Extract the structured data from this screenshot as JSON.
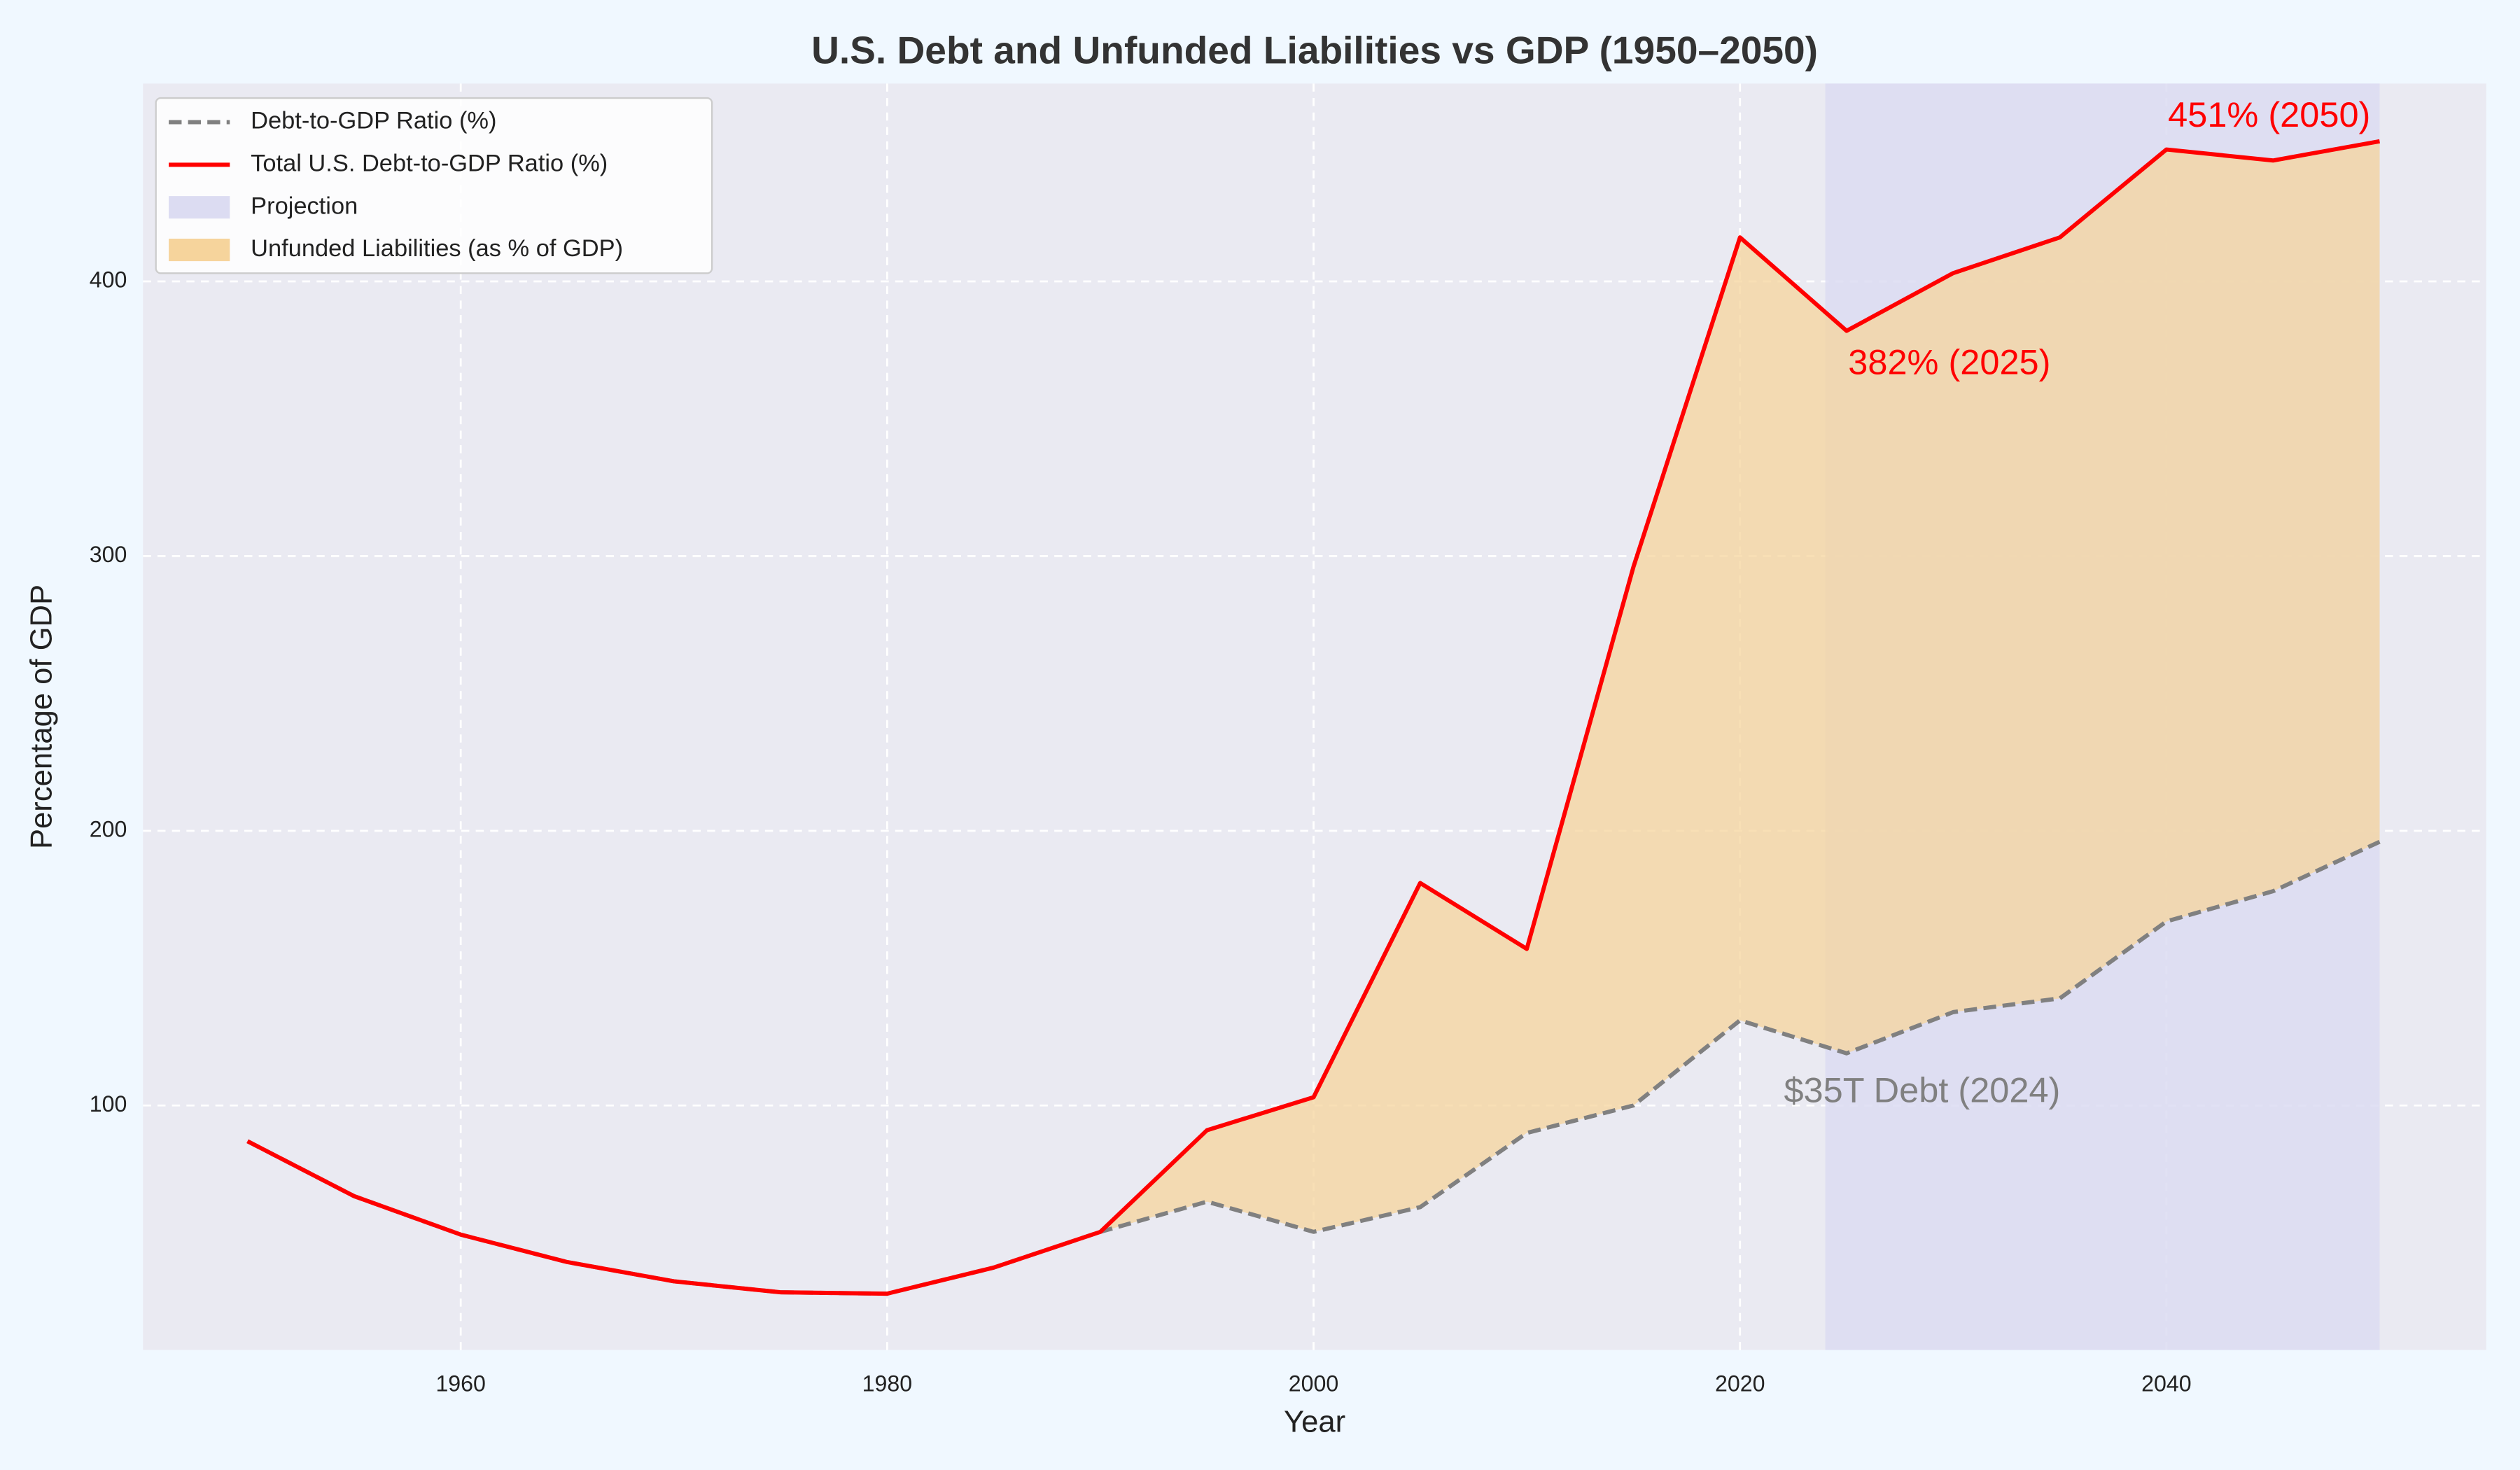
{
  "chart_data": {
    "type": "line",
    "title": "U.S. Debt and Unfunded Liabilities vs GDP (1950–2050)",
    "x_label": "Year",
    "y_label": "Percentage of GDP",
    "x": [
      1950,
      1955,
      1960,
      1965,
      1970,
      1975,
      1980,
      1985,
      1990,
      1995,
      2000,
      2005,
      2010,
      2015,
      2020,
      2025,
      2030,
      2035,
      2040,
      2045,
      2050
    ],
    "series": [
      {
        "name": "Debt-to-GDP Ratio (%)",
        "color": "#808080",
        "style": "dashed",
        "values": [
          87,
          67,
          53,
          43,
          36,
          32,
          31.5,
          41,
          54,
          65,
          54,
          63,
          90,
          100,
          131,
          119,
          134,
          139,
          167,
          178,
          196
        ]
      },
      {
        "name": "Total U.S. Debt-to-GDP Ratio (%)",
        "color": "#ff0000",
        "style": "solid",
        "values": [
          87,
          67,
          53,
          43,
          36,
          32,
          31.5,
          41,
          54,
          91,
          103,
          181,
          157,
          296,
          416,
          382,
          403,
          416,
          448,
          444,
          451
        ]
      }
    ],
    "projection": {
      "name": "Projection",
      "range": [
        2024,
        2050
      ],
      "color": "#dcdcf2"
    },
    "fill": {
      "name": "Unfunded Liabilities (as % of GDP)",
      "color": "#f6d49c"
    },
    "annotations": [
      {
        "text": "451% (2050)",
        "color": "#ff0000"
      },
      {
        "text": "382% (2025)",
        "color": "#ff0000"
      },
      {
        "text": "$35T Debt (2024)",
        "color": "#808080"
      }
    ],
    "xlim": [
      1945.1,
      2055
    ],
    "ylim": [
      11,
      472
    ],
    "xticks": [
      1960,
      1980,
      2000,
      2020,
      2040
    ],
    "yticks": [
      100,
      200,
      300,
      400
    ],
    "grid": true,
    "legend": "upper left"
  }
}
